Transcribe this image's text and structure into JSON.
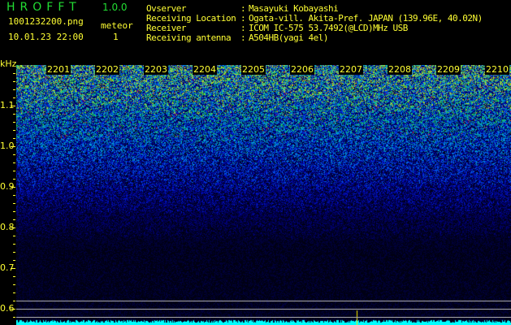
{
  "header": {
    "app_title": "HROFFT",
    "version": "1.0.0",
    "filename": "1001232200.png",
    "datetime": "10.01.23 22:00",
    "meteor_label": "meteor",
    "meteor_count": "1"
  },
  "info": [
    {
      "label": "Ovserver",
      "value": "Masayuki Kobayashi"
    },
    {
      "label": "Receiving Location",
      "value": "Ogata-vill. Akita-Pref. JAPAN (139.96E, 40.02N)"
    },
    {
      "label": "Receiver",
      "value": "ICOM IC-575 53.7492(@LCD)MHz USB"
    },
    {
      "label": "Receiving antenna",
      "value": "A504HB(yagi 4el)"
    }
  ],
  "spectrogram": {
    "y_unit": "kHz",
    "y_labels": [
      "1.1",
      "1.0",
      "0.9",
      "0.8",
      "0.7",
      "0.6"
    ],
    "time_labels": [
      "2201",
      "2202",
      "2203",
      "2204",
      "2205",
      "2206",
      "2207",
      "2208",
      "2209",
      "2210"
    ],
    "colors": {
      "text": "#ffff33",
      "title": "#22dd33",
      "baseline": "#00ffff",
      "reference_lines": "#aaaaaa"
    }
  }
}
